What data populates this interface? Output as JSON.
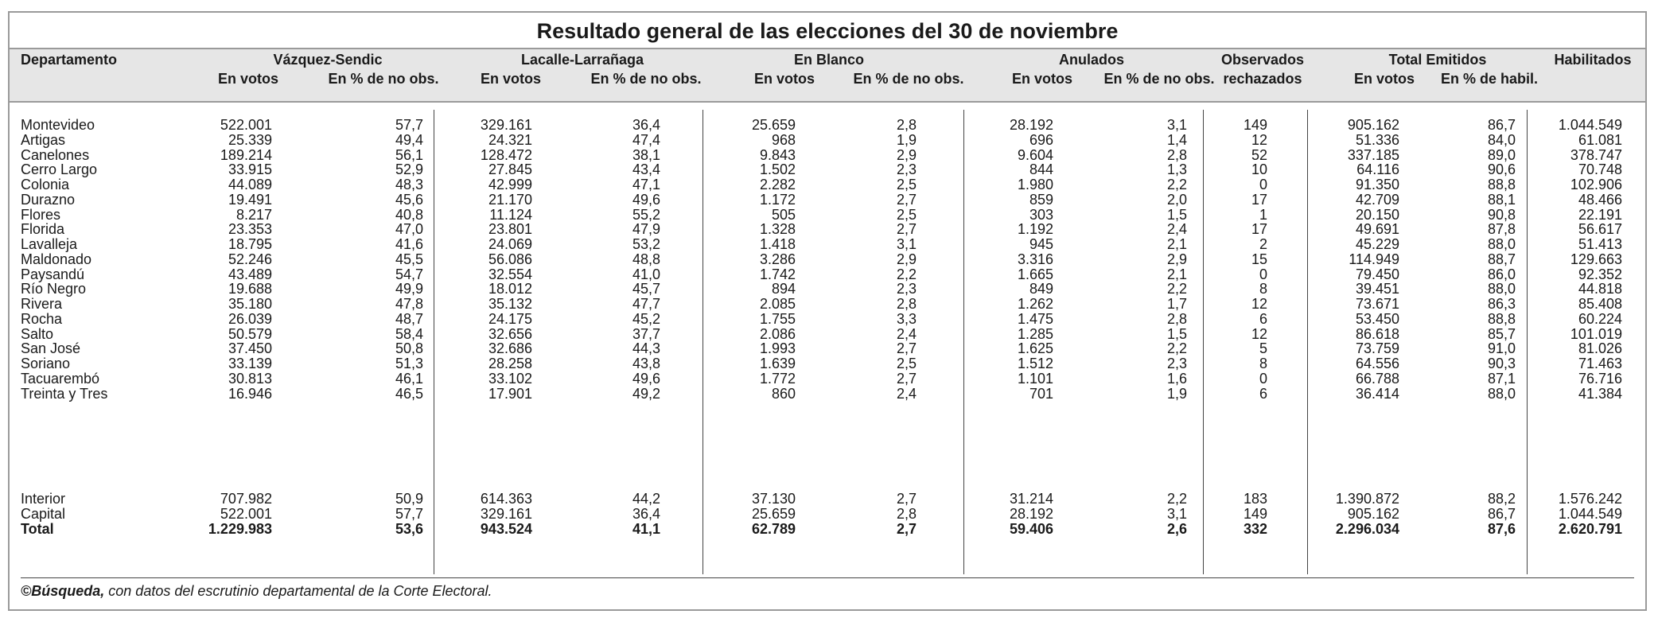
{
  "title": "Resultado general de las elecciones del 30 de noviembre",
  "headers": {
    "departamento": "Departamento",
    "vazquez": "Vázquez-Sendic",
    "lacalle": "Lacalle-Larrañaga",
    "blanco": "En Blanco",
    "anulados": "Anulados",
    "observados": "Observados",
    "total": "Total Emitidos",
    "habilitados": "Habilitados",
    "en_votos": "En votos",
    "pct_no_obs": "En % de no obs.",
    "rechazados": "rechazados",
    "pct_habil": "En % de habil."
  },
  "rows": [
    [
      "Montevideo",
      "522.001",
      "57,7",
      "329.161",
      "36,4",
      "25.659",
      "2,8",
      "28.192",
      "3,1",
      "149",
      "905.162",
      "86,7",
      "1.044.549"
    ],
    [
      "Artigas",
      "25.339",
      "49,4",
      "24.321",
      "47,4",
      "968",
      "1,9",
      "696",
      "1,4",
      "12",
      "51.336",
      "84,0",
      "61.081"
    ],
    [
      "Canelones",
      "189.214",
      "56,1",
      "128.472",
      "38,1",
      "9.843",
      "2,9",
      "9.604",
      "2,8",
      "52",
      "337.185",
      "89,0",
      "378.747"
    ],
    [
      "Cerro Largo",
      "33.915",
      "52,9",
      "27.845",
      "43,4",
      "1.502",
      "2,3",
      "844",
      "1,3",
      "10",
      "64.116",
      "90,6",
      "70.748"
    ],
    [
      "Colonia",
      "44.089",
      "48,3",
      "42.999",
      "47,1",
      "2.282",
      "2,5",
      "1.980",
      "2,2",
      "0",
      "91.350",
      "88,8",
      "102.906"
    ],
    [
      "Durazno",
      "19.491",
      "45,6",
      "21.170",
      "49,6",
      "1.172",
      "2,7",
      "859",
      "2,0",
      "17",
      "42.709",
      "88,1",
      "48.466"
    ],
    [
      "Flores",
      "8.217",
      "40,8",
      "11.124",
      "55,2",
      "505",
      "2,5",
      "303",
      "1,5",
      "1",
      "20.150",
      "90,8",
      "22.191"
    ],
    [
      "Florida",
      "23.353",
      "47,0",
      "23.801",
      "47,9",
      "1.328",
      "2,7",
      "1.192",
      "2,4",
      "17",
      "49.691",
      "87,8",
      "56.617"
    ],
    [
      "Lavalleja",
      "18.795",
      "41,6",
      "24.069",
      "53,2",
      "1.418",
      "3,1",
      "945",
      "2,1",
      "2",
      "45.229",
      "88,0",
      "51.413"
    ],
    [
      "Maldonado",
      "52.246",
      "45,5",
      "56.086",
      "48,8",
      "3.286",
      "2,9",
      "3.316",
      "2,9",
      "15",
      "114.949",
      "88,7",
      "129.663"
    ],
    [
      "Paysandú",
      "43.489",
      "54,7",
      "32.554",
      "41,0",
      "1.742",
      "2,2",
      "1.665",
      "2,1",
      "0",
      "79.450",
      "86,0",
      "92.352"
    ],
    [
      "Río Negro",
      "19.688",
      "49,9",
      "18.012",
      "45,7",
      "894",
      "2,3",
      "849",
      "2,2",
      "8",
      "39.451",
      "88,0",
      "44.818"
    ],
    [
      "Rivera",
      "35.180",
      "47,8",
      "35.132",
      "47,7",
      "2.085",
      "2,8",
      "1.262",
      "1,7",
      "12",
      "73.671",
      "86,3",
      "85.408"
    ],
    [
      "Rocha",
      "26.039",
      "48,7",
      "24.175",
      "45,2",
      "1.755",
      "3,3",
      "1.475",
      "2,8",
      "6",
      "53.450",
      "88,8",
      "60.224"
    ],
    [
      "Salto",
      "50.579",
      "58,4",
      "32.656",
      "37,7",
      "2.086",
      "2,4",
      "1.285",
      "1,5",
      "12",
      "86.618",
      "85,7",
      "101.019"
    ],
    [
      "San José",
      "37.450",
      "50,8",
      "32.686",
      "44,3",
      "1.993",
      "2,7",
      "1.625",
      "2,2",
      "5",
      "73.759",
      "91,0",
      "81.026"
    ],
    [
      "Soriano",
      "33.139",
      "51,3",
      "28.258",
      "43,8",
      "1.639",
      "2,5",
      "1.512",
      "2,3",
      "8",
      "64.556",
      "90,3",
      "71.463"
    ],
    [
      "Tacuarembó",
      "30.813",
      "46,1",
      "33.102",
      "49,6",
      "1.772",
      "2,7",
      "1.101",
      "1,6",
      "0",
      "66.788",
      "87,1",
      "76.716"
    ],
    [
      "Treinta y Tres",
      "16.946",
      "46,5",
      "17.901",
      "49,2",
      "860",
      "2,4",
      "701",
      "1,9",
      "6",
      "36.414",
      "88,0",
      "41.384"
    ]
  ],
  "summary": [
    [
      "Interior",
      "707.982",
      "50,9",
      "614.363",
      "44,2",
      "37.130",
      "2,7",
      "31.214",
      "2,2",
      "183",
      "1.390.872",
      "88,2",
      "1.576.242"
    ],
    [
      "Capital",
      "522.001",
      "57,7",
      "329.161",
      "36,4",
      "25.659",
      "2,8",
      "28.192",
      "3,1",
      "149",
      "905.162",
      "86,7",
      "1.044.549"
    ],
    [
      "Total",
      "1.229.983",
      "53,6",
      "943.524",
      "41,1",
      "62.789",
      "2,7",
      "59.406",
      "2,6",
      "332",
      "2.296.034",
      "87,6",
      "2.620.791"
    ]
  ],
  "footer": {
    "source_bold": "©Búsqueda,",
    "source_text": " con datos del escrutinio departamental de la Corte Electoral."
  }
}
